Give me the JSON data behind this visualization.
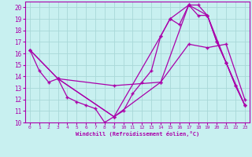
{
  "xlabel": "Windchill (Refroidissement éolien,°C)",
  "bg_color": "#c8f0f0",
  "grid_color": "#a8d8d8",
  "line_color": "#aa00aa",
  "xlim": [
    -0.5,
    23.5
  ],
  "ylim": [
    10,
    20.5
  ],
  "xticks": [
    0,
    1,
    2,
    3,
    4,
    5,
    6,
    7,
    8,
    9,
    10,
    11,
    12,
    13,
    14,
    15,
    16,
    17,
    18,
    19,
    20,
    21,
    22,
    23
  ],
  "yticks": [
    10,
    11,
    12,
    13,
    14,
    15,
    16,
    17,
    18,
    19,
    20
  ],
  "lines": [
    {
      "x": [
        0,
        1,
        2,
        3,
        4,
        5,
        6,
        7,
        8,
        9,
        10,
        11,
        12,
        13,
        14,
        15,
        16,
        17,
        18,
        19,
        20,
        21,
        22,
        23
      ],
      "y": [
        16.3,
        14.5,
        13.5,
        13.8,
        12.2,
        11.8,
        11.5,
        11.2,
        10.0,
        10.5,
        11.0,
        12.5,
        13.5,
        14.5,
        17.5,
        19.0,
        18.5,
        20.2,
        20.2,
        19.3,
        17.0,
        15.2,
        13.2,
        11.5
      ]
    },
    {
      "x": [
        0,
        3,
        9,
        14,
        17,
        19,
        21,
        23
      ],
      "y": [
        16.3,
        13.8,
        13.2,
        13.5,
        16.8,
        16.5,
        16.8,
        12.0
      ]
    },
    {
      "x": [
        0,
        3,
        9,
        14,
        15,
        17,
        18,
        19,
        20,
        21,
        22,
        23
      ],
      "y": [
        16.3,
        13.8,
        10.5,
        17.5,
        19.0,
        20.2,
        19.3,
        19.3,
        17.0,
        15.2,
        13.2,
        11.5
      ]
    },
    {
      "x": [
        3,
        9,
        14,
        17,
        19,
        21,
        23
      ],
      "y": [
        13.8,
        10.5,
        13.5,
        20.2,
        19.3,
        15.2,
        11.5
      ]
    }
  ]
}
